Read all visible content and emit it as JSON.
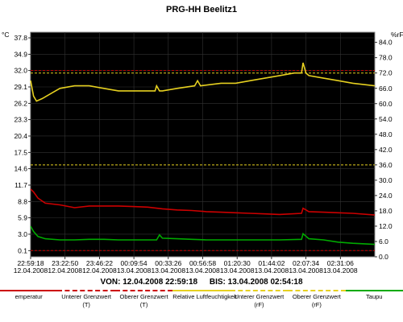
{
  "window_title": "PRG-HH Beelitz1",
  "y_left_unit": "°C",
  "y_right_unit": "%rF",
  "time_range": {
    "from_label": "VON: 12.04.2008 22:59:18",
    "to_label": "BIS: 13.04.2008 02:54:18"
  },
  "legend": [
    {
      "label": "emperatur",
      "sub": "",
      "color": "#cc0000",
      "style": "solid"
    },
    {
      "label": "Unterer Grenzwert",
      "sub": "(T)",
      "color": "#cc0000",
      "style": "dashed"
    },
    {
      "label": "Oberer Grenzwert",
      "sub": "(T)",
      "color": "#cc0000",
      "style": "dashed"
    },
    {
      "label": "Relative Luftfeuchtigkeit",
      "sub": "",
      "color": "#e6d020",
      "style": "solid"
    },
    {
      "label": "Unterer Grenzwert",
      "sub": "(rF)",
      "color": "#e6d020",
      "style": "dashed"
    },
    {
      "label": "Oberer Grenzwert",
      "sub": "(rF)",
      "color": "#e6d020",
      "style": "dashed"
    },
    {
      "label": "Taupu",
      "sub": "",
      "color": "#00aa00",
      "style": "solid"
    }
  ],
  "chart_data": {
    "type": "line",
    "title": "PRG-HH Beelitz1",
    "background": "#000000",
    "grid": true,
    "x_tick_labels": [
      [
        "22:59:18",
        "12.04.2008"
      ],
      [
        "23:22:50",
        "12.04.2008"
      ],
      [
        "23:46:22",
        "12.04.2008"
      ],
      [
        "00:09:54",
        "13.04.2008"
      ],
      [
        "00:33:26",
        "13.04.2008"
      ],
      [
        "00:56:58",
        "13.04.2008"
      ],
      [
        "01:20:30",
        "13.04.2008"
      ],
      [
        "01:44:02",
        "13.04.2008"
      ],
      [
        "02:07:34",
        "13.04.2008"
      ],
      [
        "02:31:06",
        "13.04.2008"
      ]
    ],
    "xlim": [
      0,
      235
    ],
    "y_left": {
      "ticks": [
        "37.8",
        "34.9",
        "32.0",
        "29.1",
        "26.2",
        "23.3",
        "20.4",
        "17.5",
        "14.6",
        "11.7",
        "8.8",
        "5.9",
        "3.0",
        "0.1"
      ],
      "ylim": [
        -1.0,
        38.8
      ]
    },
    "y_right": {
      "ticks": [
        "84.0",
        "78.0",
        "72.0",
        "66.0",
        "60.0",
        "54.0",
        "48.0",
        "42.0",
        "36.0",
        "30.0",
        "24.0",
        "18.0",
        "12.0",
        "6.0",
        "0.0"
      ],
      "ylim": [
        0,
        88
      ]
    },
    "series": [
      {
        "name": "Relative Luftfeuchtigkeit",
        "axis": "right",
        "color": "#e6d020",
        "x": [
          0,
          2,
          4,
          8,
          14,
          20,
          30,
          40,
          50,
          60,
          70,
          85,
          86,
          88,
          90,
          100,
          112,
          114,
          116,
          130,
          140,
          150,
          160,
          170,
          180,
          185,
          186,
          188,
          190,
          200,
          210,
          220,
          235
        ],
        "y": [
          69,
          63,
          61,
          62,
          64,
          66,
          67,
          67,
          66,
          65,
          65,
          65,
          67,
          65,
          65,
          66,
          67,
          69,
          67,
          68,
          68,
          69,
          70,
          71,
          72,
          72,
          76,
          72,
          71,
          70,
          69,
          68,
          67
        ]
      },
      {
        "name": "Temperatur",
        "axis": "left",
        "color": "#cc0000",
        "x": [
          0,
          2,
          5,
          10,
          20,
          30,
          40,
          50,
          60,
          70,
          80,
          90,
          100,
          110,
          120,
          130,
          140,
          150,
          160,
          170,
          185,
          186,
          190,
          200,
          210,
          220,
          235
        ],
        "y": [
          11.0,
          10.5,
          9.4,
          8.5,
          8.2,
          7.7,
          8.0,
          8.0,
          8.0,
          7.9,
          7.8,
          7.5,
          7.3,
          7.2,
          7.0,
          6.9,
          6.8,
          6.7,
          6.6,
          6.5,
          6.7,
          7.6,
          7.0,
          6.9,
          6.8,
          6.7,
          6.4
        ]
      },
      {
        "name": "Taupunkt",
        "axis": "left",
        "color": "#00aa00",
        "x": [
          0,
          2,
          5,
          10,
          20,
          30,
          40,
          50,
          60,
          70,
          80,
          86,
          88,
          90,
          100,
          110,
          120,
          130,
          140,
          150,
          160,
          170,
          185,
          186,
          190,
          200,
          210,
          220,
          235
        ],
        "y": [
          4.4,
          3.5,
          2.6,
          2.2,
          2.0,
          2.0,
          2.1,
          2.1,
          2.0,
          2.0,
          2.0,
          2.0,
          2.9,
          2.3,
          2.2,
          2.1,
          2.0,
          2.0,
          2.0,
          2.0,
          2.0,
          2.0,
          2.1,
          3.1,
          2.2,
          2.0,
          1.6,
          1.4,
          1.2
        ]
      }
    ],
    "limit_lines": [
      {
        "name": "Unterer Grenzwert (T)",
        "axis": "left",
        "value": 0.1,
        "color": "#cc0000"
      },
      {
        "name": "Oberer Grenzwert (T)",
        "axis": "left",
        "value": 32.0,
        "color": "#cc0000"
      },
      {
        "name": "Unterer Grenzwert (rF)",
        "axis": "right",
        "value": 36.0,
        "color": "#e6d020"
      },
      {
        "name": "Oberer Grenzwert (rF)",
        "axis": "right",
        "value": 72.0,
        "color": "#e6d020"
      }
    ]
  }
}
